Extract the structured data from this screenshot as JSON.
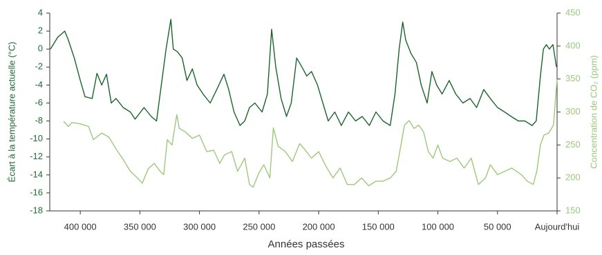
{
  "chart_data": {
    "type": "line",
    "xlabel": "Années passées",
    "ylabel": "Écart à la température actuelle (°C)",
    "y2label": "Concentration de CO₂ (ppm)",
    "xlim": [
      425600,
      0
    ],
    "xticks": [
      {
        "value": 400000,
        "label": "400 000"
      },
      {
        "value": 350000,
        "label": "350 000"
      },
      {
        "value": 300000,
        "label": "300 000"
      },
      {
        "value": 250000,
        "label": "250 000"
      },
      {
        "value": 200000,
        "label": "200 000"
      },
      {
        "value": 150000,
        "label": "150 000"
      },
      {
        "value": 100000,
        "label": "100 000"
      },
      {
        "value": 50000,
        "label": "50 000"
      },
      {
        "value": 0,
        "label": "Aujourd'hui"
      }
    ],
    "ylim": [
      -18,
      4
    ],
    "yticks": [
      -18,
      -16,
      -14,
      -12,
      -10,
      -8,
      -6,
      -4,
      -2,
      0,
      2,
      4
    ],
    "y2lim": [
      150,
      450
    ],
    "y2ticks": [
      150,
      200,
      250,
      300,
      350,
      400,
      450
    ],
    "ycolor": "#1f6b32",
    "y2color": "#9cc97a",
    "series": [
      {
        "color": "#1a6329",
        "x": [
          425000,
          419000,
          413000,
          410000,
          405000,
          400000,
          396000,
          390000,
          386000,
          382000,
          378000,
          374000,
          370000,
          364000,
          358000,
          354000,
          346500,
          340500,
          336000,
          332000,
          328000,
          324000,
          322000,
          318500,
          314500,
          310500,
          306000,
          302000,
          297000,
          291000,
          285500,
          279500,
          275500,
          271000,
          266000,
          262000,
          258000,
          253500,
          247500,
          243000,
          239500,
          236000,
          231500,
          227000,
          223000,
          218500,
          214000,
          210000,
          206000,
          201000,
          196500,
          192000,
          186500,
          181000,
          175000,
          169000,
          163500,
          157500,
          152000,
          146000,
          140000,
          136000,
          132500,
          129500,
          127000,
          122500,
          118000,
          114000,
          109000,
          105000,
          101000,
          96500,
          90500,
          85000,
          79000,
          73000,
          67500,
          61500,
          56000,
          50000,
          44000,
          38500,
          32500,
          27000,
          21000,
          17500,
          14000,
          11500,
          9000,
          6500,
          3500,
          500
        ],
        "values": [
          0,
          1.3,
          2.0,
          1.0,
          -1,
          -3.5,
          -5.3,
          -5.5,
          -2.7,
          -4,
          -2.8,
          -6,
          -5.5,
          -6.5,
          -7,
          -7.8,
          -6.5,
          -7.5,
          -8,
          -4,
          0,
          3.3,
          0,
          -0.3,
          -1,
          -3.5,
          -2.2,
          -4,
          -5,
          -6,
          -4.5,
          -2.8,
          -4.5,
          -7,
          -8.5,
          -8,
          -6.5,
          -6,
          -7,
          -5,
          2.2,
          -2,
          -5.5,
          -7.5,
          -6,
          -1,
          -2,
          -3,
          -2.5,
          -4,
          -6,
          -8,
          -7,
          -8.5,
          -7,
          -8,
          -7.5,
          -8.5,
          -7,
          -8,
          -8.5,
          -5,
          0,
          3,
          1,
          -0.5,
          -1.5,
          -4,
          -6,
          -2.5,
          -4,
          -5,
          -3.5,
          -5,
          -6,
          -5.5,
          -6.5,
          -4.5,
          -5.5,
          -6.5,
          -7,
          -7.5,
          -8,
          -8,
          -8.5,
          -8,
          -3,
          0,
          0.5,
          0,
          0.5,
          -2
        ]
      },
      {
        "color": "#9cc97a",
        "axis": "y2",
        "x": [
          414000,
          410000,
          407000,
          400000,
          393000,
          389000,
          382000,
          376000,
          370000,
          364000,
          358000,
          352000,
          348000,
          343000,
          338000,
          333000,
          330000,
          327000,
          323000,
          319000,
          317000,
          312000,
          306000,
          300000,
          294000,
          288000,
          283000,
          279000,
          273000,
          268000,
          262000,
          258000,
          255000,
          250000,
          246000,
          241000,
          238000,
          234000,
          228000,
          222000,
          216000,
          212000,
          206000,
          200000,
          194000,
          188000,
          182000,
          176000,
          170000,
          164000,
          158000,
          152000,
          146000,
          140000,
          135000,
          130000,
          128000,
          124000,
          120000,
          116000,
          112000,
          108000,
          104000,
          100000,
          96000,
          90000,
          84000,
          78000,
          72000,
          66000,
          60000,
          56000,
          50000,
          44000,
          38000,
          30000,
          25000,
          20000,
          17000,
          14000,
          11000,
          7000,
          3000,
          0
        ],
        "values": [
          286,
          278,
          284,
          282,
          278,
          258,
          268,
          262,
          244,
          228,
          210,
          200,
          192,
          214,
          222,
          210,
          205,
          258,
          250,
          296,
          275,
          270,
          260,
          265,
          240,
          242,
          222,
          235,
          240,
          210,
          230,
          190,
          186,
          208,
          220,
          200,
          276,
          248,
          240,
          225,
          252,
          244,
          230,
          240,
          218,
          200,
          215,
          190,
          190,
          200,
          188,
          195,
          195,
          200,
          210,
          260,
          280,
          287,
          275,
          280,
          270,
          240,
          230,
          250,
          230,
          225,
          230,
          215,
          230,
          190,
          200,
          220,
          205,
          210,
          215,
          205,
          195,
          190,
          210,
          250,
          265,
          268,
          280,
          350
        ]
      }
    ]
  }
}
